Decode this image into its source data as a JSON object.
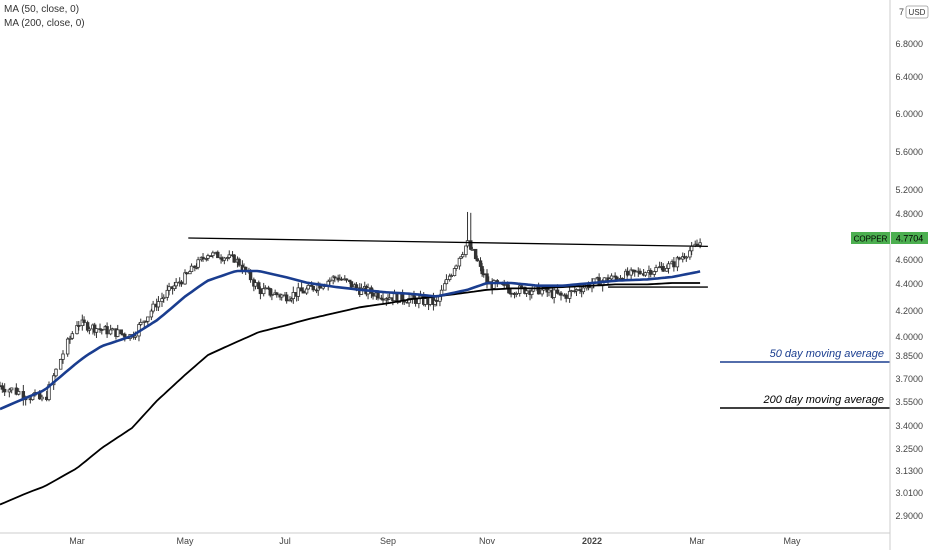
{
  "legend": {
    "ma50": "MA (50, close, 0)",
    "ma200": "MA (200, close, 0)"
  },
  "price_axis": {
    "currency": "USD",
    "top_label": "7",
    "ticks": [
      "6.8000",
      "6.4000",
      "6.0000",
      "5.6000",
      "5.2000",
      "4.8000",
      "4.6000",
      "4.4000",
      "4.2000",
      "4.0000",
      "3.8500",
      "3.7000",
      "3.5500",
      "3.4000",
      "3.2500",
      "3.1300",
      "3.0100",
      "2.9000"
    ]
  },
  "time_axis": {
    "labels": [
      "Mar",
      "May",
      "Jul",
      "Sep",
      "Nov",
      "2022",
      "Mar",
      "May"
    ]
  },
  "price_tag": {
    "symbol": "COPPER",
    "value": "4.7704"
  },
  "annotations": {
    "ma50_label": "50 day moving average",
    "ma200_label": "200 day moving average"
  },
  "colors": {
    "ma50": "#1a3d8f",
    "ma200": "#000000",
    "candle": "#333333",
    "tag": "#4caf50"
  },
  "chart_data": {
    "type": "line",
    "x": [
      "2021-01-27",
      "2021-02-15",
      "2021-03-01",
      "2021-03-15",
      "2021-04-01",
      "2021-04-15",
      "2021-05-01",
      "2021-05-15",
      "2021-06-01",
      "2021-06-15",
      "2021-07-01",
      "2021-07-15",
      "2021-08-01",
      "2021-08-15",
      "2021-09-01",
      "2021-09-15",
      "2021-10-01",
      "2021-10-20",
      "2021-11-01",
      "2021-11-15",
      "2021-12-01",
      "2021-12-15",
      "2022-01-01",
      "2022-01-15",
      "2022-02-01",
      "2022-02-15",
      "2022-03-04"
    ],
    "series": [
      {
        "name": "COPPER",
        "values": [
          3.65,
          3.55,
          4.1,
          4.05,
          4.0,
          4.25,
          4.45,
          4.65,
          4.6,
          4.35,
          4.3,
          4.35,
          4.45,
          4.35,
          4.3,
          4.28,
          4.25,
          4.75,
          4.4,
          4.35,
          4.35,
          4.3,
          4.4,
          4.45,
          4.5,
          4.55,
          4.7704
        ]
      },
      {
        "name": "MA (50, close, 0)",
        "values": [
          3.5,
          3.62,
          3.8,
          3.92,
          4.0,
          4.12,
          4.3,
          4.42,
          4.5,
          4.5,
          4.45,
          4.4,
          4.37,
          4.35,
          4.33,
          4.32,
          4.3,
          4.35,
          4.4,
          4.4,
          4.38,
          4.38,
          4.4,
          4.42,
          4.43,
          4.45,
          4.5
        ]
      },
      {
        "name": "MA (200, close, 0)",
        "values": [
          2.95,
          3.04,
          3.14,
          3.25,
          3.38,
          3.55,
          3.72,
          3.85,
          3.95,
          4.03,
          4.08,
          4.13,
          4.18,
          4.22,
          4.25,
          4.28,
          4.3,
          4.33,
          4.35,
          4.36,
          4.36,
          4.37,
          4.38,
          4.39,
          4.39,
          4.4,
          4.4
        ]
      }
    ],
    "trendline": {
      "x": [
        "2021-05-03",
        "2022-03-08"
      ],
      "y": [
        4.8,
        4.72
      ]
    },
    "ylim": [
      2.85,
      7.0
    ],
    "y_scale": "log",
    "grid": false,
    "legend": "top-left"
  }
}
